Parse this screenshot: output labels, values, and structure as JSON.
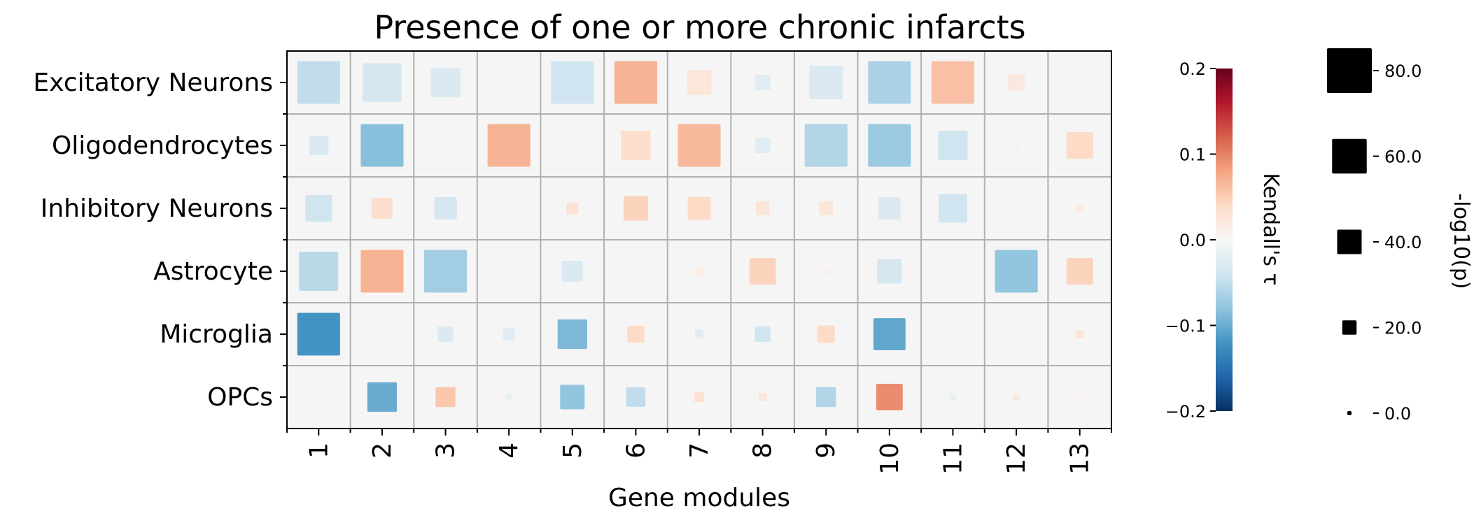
{
  "chart_data": {
    "type": "heatmap",
    "title": "Presence of one or more chronic infarcts",
    "xlabel": "Gene modules",
    "ylabel": "",
    "rows": [
      "Excitatory Neurons",
      "Oligodendrocytes",
      "Inhibitory Neurons",
      "Astrocyte",
      "Microglia",
      "OPCs"
    ],
    "columns": [
      "1",
      "2",
      "3",
      "4",
      "5",
      "6",
      "7",
      "8",
      "9",
      "10",
      "11",
      "12",
      "13"
    ],
    "tau": [
      [
        -0.05,
        -0.035,
        -0.03,
        0.008,
        -0.04,
        0.07,
        0.025,
        -0.025,
        -0.03,
        -0.065,
        0.06,
        0.02,
        0.0
      ],
      [
        -0.03,
        -0.085,
        0.0,
        0.07,
        -0.005,
        0.035,
        0.065,
        -0.025,
        -0.06,
        -0.075,
        -0.04,
        -0.01,
        0.04
      ],
      [
        -0.04,
        0.035,
        -0.035,
        0.0,
        0.03,
        0.045,
        0.04,
        0.025,
        0.025,
        -0.03,
        -0.04,
        0.0,
        0.015
      ],
      [
        -0.055,
        0.07,
        -0.07,
        -0.005,
        -0.03,
        -0.005,
        0.015,
        0.045,
        0.01,
        -0.035,
        0.0,
        -0.08,
        0.045
      ],
      [
        -0.12,
        0.0,
        -0.03,
        -0.025,
        -0.09,
        0.04,
        -0.025,
        -0.04,
        0.04,
        -0.105,
        -0.002,
        0.0,
        0.025
      ],
      [
        0.0,
        -0.1,
        0.055,
        -0.015,
        -0.08,
        -0.05,
        0.03,
        0.025,
        -0.06,
        0.095,
        -0.015,
        0.02,
        0.008
      ]
    ],
    "neg_log10_p": [
      [
        76,
        68,
        50,
        5,
        76,
        76,
        40,
        22,
        58,
        76,
        76,
        25,
        0
      ],
      [
        30,
        76,
        0,
        76,
        3,
        50,
        76,
        22,
        76,
        76,
        50,
        5,
        44
      ],
      [
        44,
        33,
        36,
        0,
        15,
        40,
        37,
        19,
        19,
        36,
        48,
        0,
        8
      ],
      [
        69,
        76,
        76,
        5,
        33,
        6,
        8,
        44,
        7,
        40,
        0,
        76,
        44
      ],
      [
        76,
        0,
        22,
        15,
        50,
        25,
        8,
        22,
        26,
        55,
        2,
        0,
        8
      ],
      [
        0,
        50,
        31,
        5,
        40,
        30,
        11,
        8,
        31,
        44,
        5,
        6,
        4
      ]
    ],
    "colorbar": {
      "label": "Kendall's τ",
      "range": [
        -0.2,
        0.2
      ],
      "colormap": "RdBu_r",
      "ticks": [
        0.2,
        0.1,
        0.0,
        -0.1,
        -0.2
      ],
      "tick_labels": [
        "0.2",
        "0.1",
        "0.0",
        "−0.1",
        "−0.2"
      ]
    },
    "size_legend": {
      "label": "-log10(p)",
      "values": [
        80,
        60,
        40,
        20,
        0
      ],
      "tick_labels": [
        "80.0",
        "60.0",
        "40.0",
        "20.0",
        "0.0"
      ]
    },
    "grid": true,
    "cell_background": "#f5f5f5",
    "grid_color": "#b0b0b0"
  }
}
